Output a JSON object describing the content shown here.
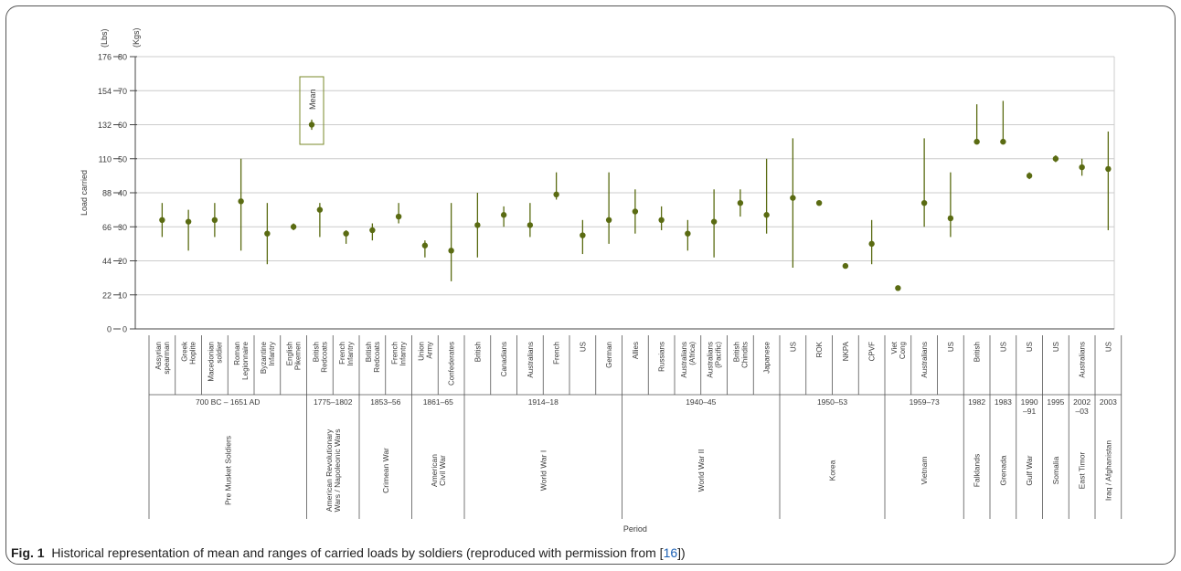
{
  "caption": {
    "label": "Fig. 1",
    "text": "Historical representation of mean and ranges of carried loads by soldiers (reproduced with permission from [",
    "ref": "16",
    "end": "])"
  },
  "colors": {
    "marker": "#5a6b12",
    "grid": "#cccccc",
    "axis": "#444444",
    "text": "#3a3a3a"
  },
  "chart_data": {
    "type": "scatter",
    "title": "",
    "xlabel": "Period",
    "ylabel": "Load carried",
    "y_units": [
      "(Lbs)",
      "(Kgs)"
    ],
    "ylim_kg": [
      0,
      80
    ],
    "yticks_lbs": [
      0,
      22,
      44,
      66,
      88,
      110,
      132,
      154,
      176
    ],
    "yticks_kg": [
      0,
      10,
      20,
      30,
      40,
      50,
      60,
      70,
      80
    ],
    "grid": true,
    "legend": {
      "label": "Mean",
      "placement": "top-left"
    },
    "points": [
      {
        "label": "Assyrian spearman",
        "mean": 32,
        "low": 27,
        "high": 37
      },
      {
        "label": "Greek Hoplite",
        "mean": 31.5,
        "low": 23,
        "high": 35
      },
      {
        "label": "Macedonian soldier",
        "mean": 32,
        "low": 27,
        "high": 37
      },
      {
        "label": "Roman Legionnaire",
        "mean": 37.5,
        "low": 23,
        "high": 50
      },
      {
        "label": "Byzantine Infantry",
        "mean": 28,
        "low": 19,
        "high": 37
      },
      {
        "label": "English Pikemen",
        "mean": 30,
        "low": 29,
        "high": 31
      },
      {
        "label": "British Redcoats",
        "mean": 35,
        "low": 27,
        "high": 37
      },
      {
        "label": "French Infantry",
        "mean": 28,
        "low": 25,
        "high": 29
      },
      {
        "label": "British Redcoats",
        "mean": 29,
        "low": 26,
        "high": 31
      },
      {
        "label": "French Infantry",
        "mean": 33,
        "low": 31,
        "high": 37
      },
      {
        "label": "Union Army",
        "mean": 24.5,
        "low": 21,
        "high": 26
      },
      {
        "label": "Confederates",
        "mean": 23,
        "low": 14,
        "high": 37
      },
      {
        "label": "British",
        "mean": 30.5,
        "low": 21,
        "high": 40
      },
      {
        "label": "Canadians",
        "mean": 33.5,
        "low": 30,
        "high": 36
      },
      {
        "label": "Australians",
        "mean": 30.5,
        "low": 27,
        "high": 37
      },
      {
        "label": "French",
        "mean": 39.5,
        "low": 38,
        "high": 46
      },
      {
        "label": "US",
        "mean": 27.5,
        "low": 22,
        "high": 32
      },
      {
        "label": "German",
        "mean": 32,
        "low": 25,
        "high": 46
      },
      {
        "label": "Allies",
        "mean": 34.5,
        "low": 28,
        "high": 41
      },
      {
        "label": "Russians",
        "mean": 32,
        "low": 29,
        "high": 36
      },
      {
        "label": "Australians (Africa)",
        "mean": 28,
        "low": 23,
        "high": 32
      },
      {
        "label": "Australians (Pacific)",
        "mean": 31.5,
        "low": 21,
        "high": 41
      },
      {
        "label": "British Chindits",
        "mean": 37,
        "low": 33,
        "high": 41
      },
      {
        "label": "Japanese",
        "mean": 33.5,
        "low": 28,
        "high": 50
      },
      {
        "label": "US",
        "mean": 38.5,
        "low": 18,
        "high": 56
      },
      {
        "label": "ROK",
        "mean": 37,
        "low": 36.5,
        "high": 37.5
      },
      {
        "label": "NKPA",
        "mean": 18.5,
        "low": 18,
        "high": 19
      },
      {
        "label": "CPVF",
        "mean": 25,
        "low": 19,
        "high": 32
      },
      {
        "label": "Viet Cong",
        "mean": 12,
        "low": 11.5,
        "high": 12.5
      },
      {
        "label": "Australians",
        "mean": 37,
        "low": 30,
        "high": 56
      },
      {
        "label": "US",
        "mean": 32.5,
        "low": 27,
        "high": 46
      },
      {
        "label": "British",
        "mean": 55,
        "low": 55,
        "high": 66
      },
      {
        "label": "US",
        "mean": 55,
        "low": 55,
        "high": 67
      },
      {
        "label": "US",
        "mean": 45,
        "low": 44,
        "high": 46
      },
      {
        "label": "US",
        "mean": 50,
        "low": 49,
        "high": 51
      },
      {
        "label": "Australians",
        "mean": 47.5,
        "low": 45,
        "high": 50
      },
      {
        "label": "US",
        "mean": 47,
        "low": 29,
        "high": 58
      }
    ],
    "groups": [
      {
        "period": "700 BC – 1651 AD",
        "war": "Pre Musket Soldiers",
        "count": 6
      },
      {
        "period": "1775–1802",
        "war": "American Revolutionary Wars / Napoleonic Wars",
        "count": 2
      },
      {
        "period": "1853–56",
        "war": "Crimean War",
        "count": 2
      },
      {
        "period": "1861–65",
        "war": "American Civil War",
        "count": 2
      },
      {
        "period": "1914–18",
        "war": "World War I",
        "count": 6
      },
      {
        "period": "1940–45",
        "war": "World War II",
        "count": 6
      },
      {
        "period": "1950–53",
        "war": "Korea",
        "count": 4
      },
      {
        "period": "1959–73",
        "war": "Vietnam",
        "count": 3
      },
      {
        "period": "1982",
        "war": "Falklands",
        "count": 1
      },
      {
        "period": "1983",
        "war": "Grenada",
        "count": 1
      },
      {
        "period": "1990–91",
        "war": "Gulf War",
        "count": 1
      },
      {
        "period": "1995",
        "war": "Somalia",
        "count": 1
      },
      {
        "period": "2002–03",
        "war": "East Timor",
        "count": 1
      },
      {
        "period": "2003",
        "war": "Iraq / Afghanistan",
        "count": 1
      }
    ]
  }
}
